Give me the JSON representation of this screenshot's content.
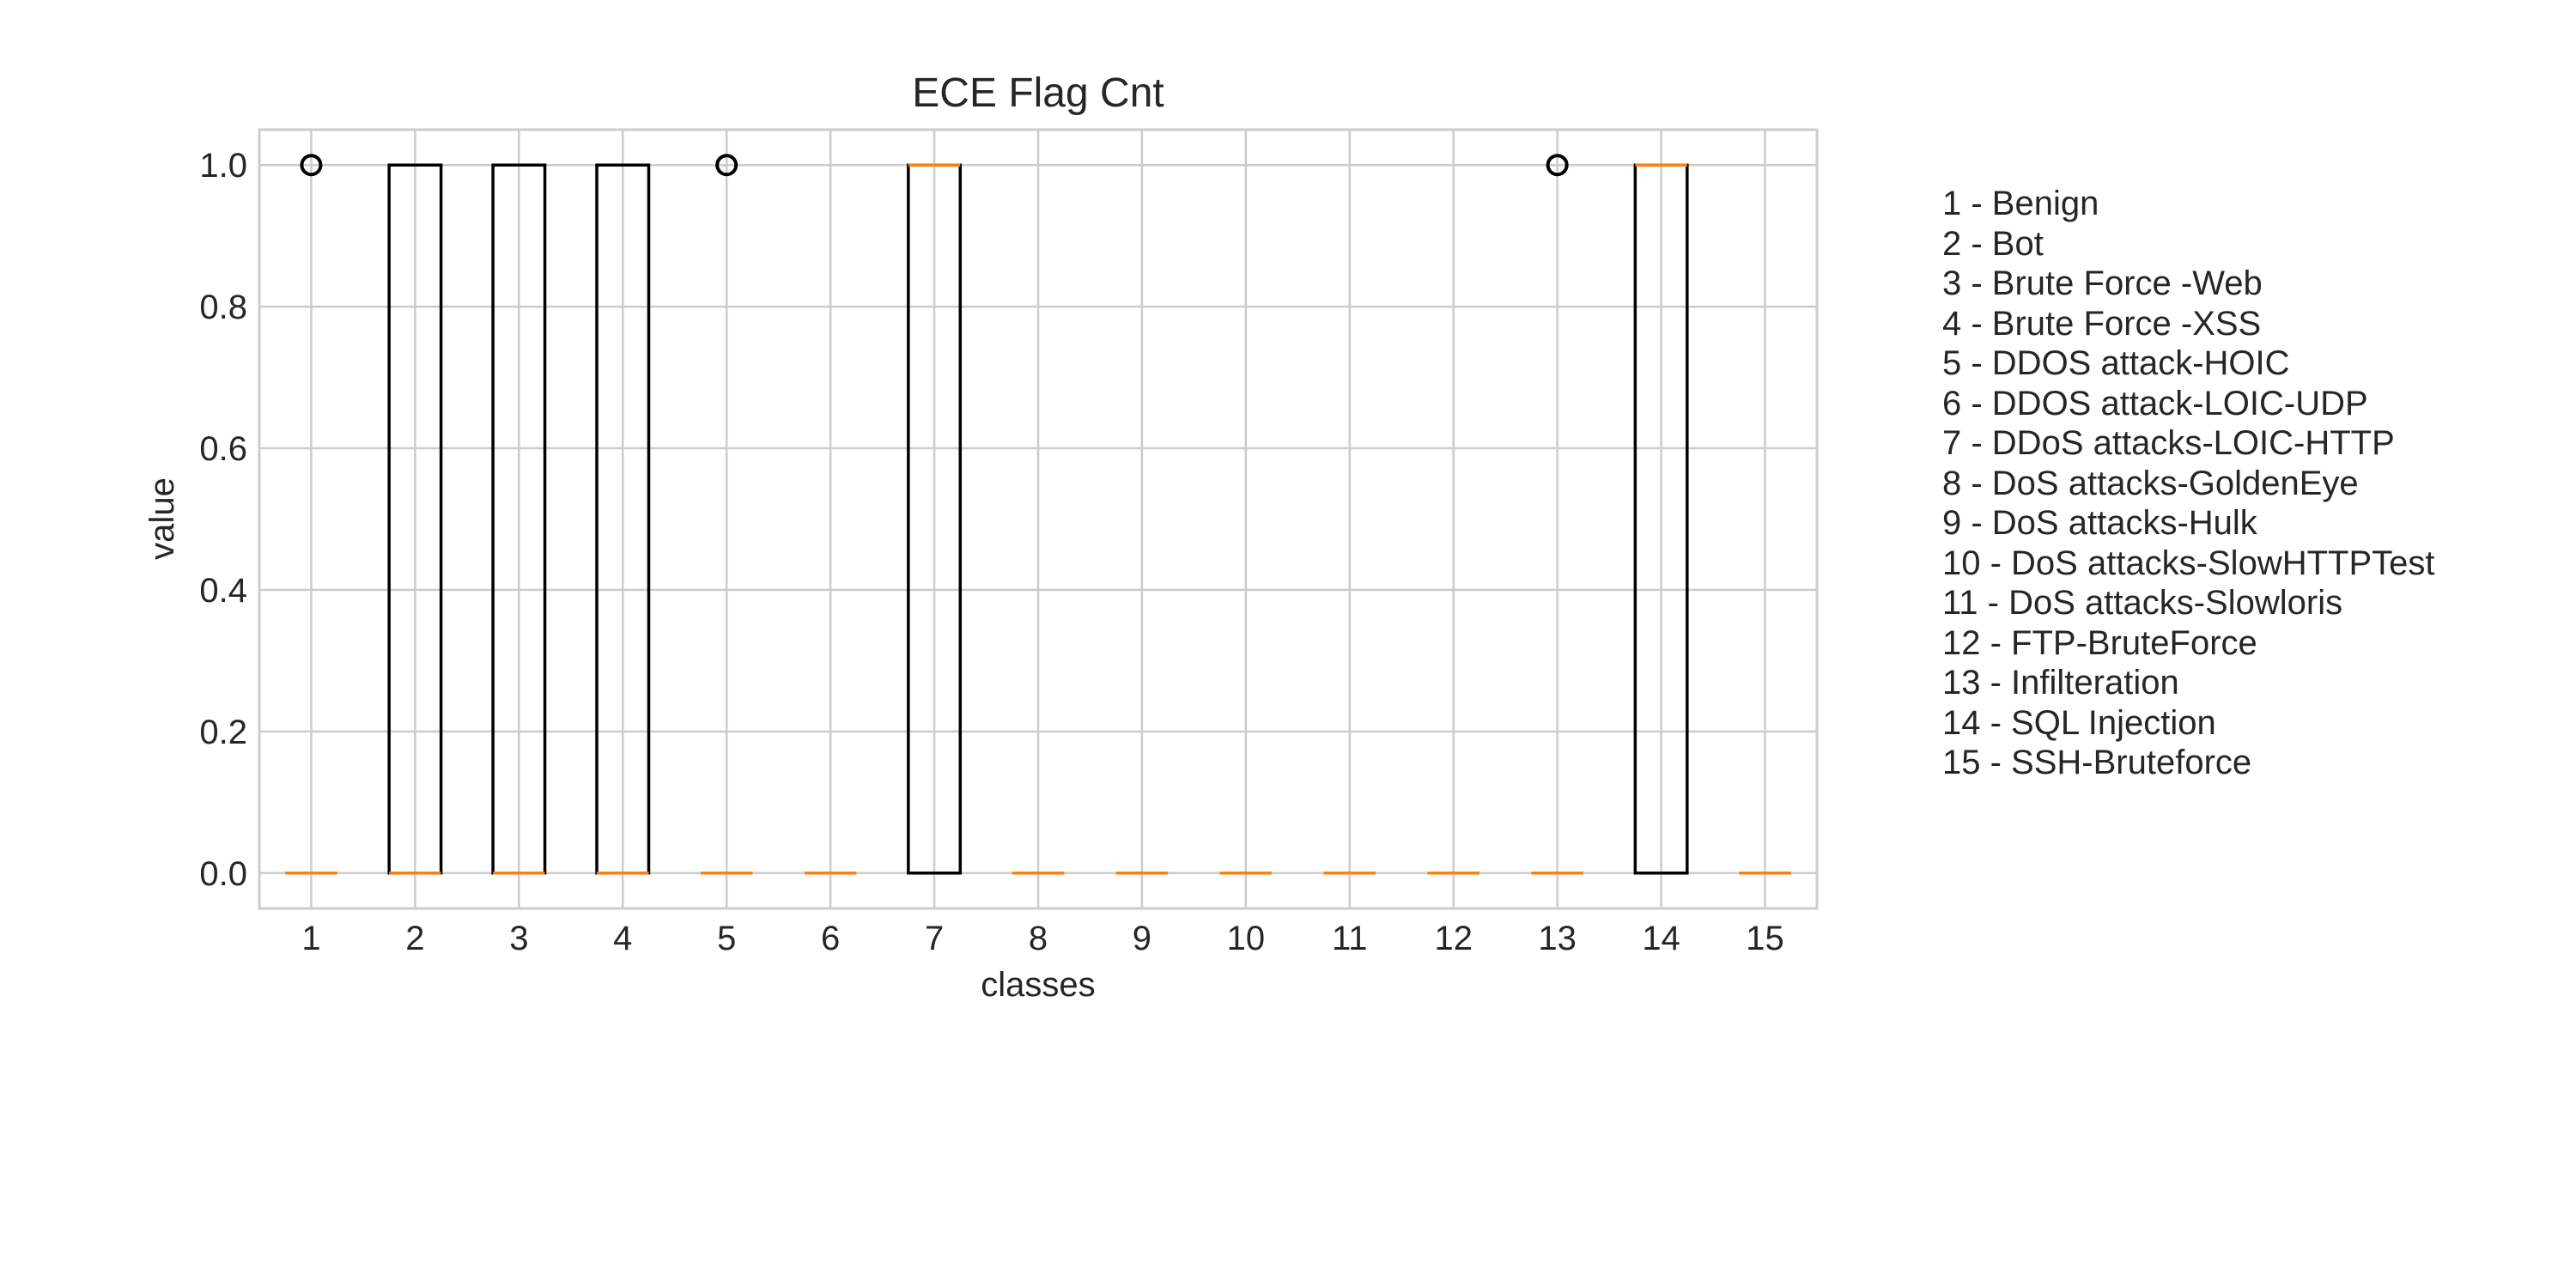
{
  "chart_data": {
    "type": "box",
    "title": "ECE Flag Cnt",
    "xlabel": "classes",
    "ylabel": "value",
    "ylim": [
      -0.05,
      1.05
    ],
    "yticks": [
      "0.0",
      "0.2",
      "0.4",
      "0.6",
      "0.8",
      "1.0"
    ],
    "grid": true,
    "categories": [
      "1",
      "2",
      "3",
      "4",
      "5",
      "6",
      "7",
      "8",
      "9",
      "10",
      "11",
      "12",
      "13",
      "14",
      "15"
    ],
    "boxes": [
      {
        "class": "1",
        "q1": 0,
        "median": 0,
        "q3": 0,
        "whisker_low": 0,
        "whisker_high": 0,
        "outliers": [
          1
        ]
      },
      {
        "class": "2",
        "q1": 0,
        "median": 0,
        "q3": 1,
        "whisker_low": 0,
        "whisker_high": 1,
        "outliers": []
      },
      {
        "class": "3",
        "q1": 0,
        "median": 0,
        "q3": 1,
        "whisker_low": 0,
        "whisker_high": 1,
        "outliers": []
      },
      {
        "class": "4",
        "q1": 0,
        "median": 0,
        "q3": 1,
        "whisker_low": 0,
        "whisker_high": 1,
        "outliers": []
      },
      {
        "class": "5",
        "q1": 0,
        "median": 0,
        "q3": 0,
        "whisker_low": 0,
        "whisker_high": 0,
        "outliers": [
          1
        ]
      },
      {
        "class": "6",
        "q1": 0,
        "median": 0,
        "q3": 0,
        "whisker_low": 0,
        "whisker_high": 0,
        "outliers": []
      },
      {
        "class": "7",
        "q1": 0,
        "median": 1,
        "q3": 1,
        "whisker_low": 0,
        "whisker_high": 1,
        "outliers": []
      },
      {
        "class": "8",
        "q1": 0,
        "median": 0,
        "q3": 0,
        "whisker_low": 0,
        "whisker_high": 0,
        "outliers": []
      },
      {
        "class": "9",
        "q1": 0,
        "median": 0,
        "q3": 0,
        "whisker_low": 0,
        "whisker_high": 0,
        "outliers": []
      },
      {
        "class": "10",
        "q1": 0,
        "median": 0,
        "q3": 0,
        "whisker_low": 0,
        "whisker_high": 0,
        "outliers": []
      },
      {
        "class": "11",
        "q1": 0,
        "median": 0,
        "q3": 0,
        "whisker_low": 0,
        "whisker_high": 0,
        "outliers": []
      },
      {
        "class": "12",
        "q1": 0,
        "median": 0,
        "q3": 0,
        "whisker_low": 0,
        "whisker_high": 0,
        "outliers": []
      },
      {
        "class": "13",
        "q1": 0,
        "median": 0,
        "q3": 0,
        "whisker_low": 0,
        "whisker_high": 0,
        "outliers": [
          1
        ]
      },
      {
        "class": "14",
        "q1": 0,
        "median": 1,
        "q3": 1,
        "whisker_low": 0,
        "whisker_high": 1,
        "outliers": []
      },
      {
        "class": "15",
        "q1": 0,
        "median": 0,
        "q3": 0,
        "whisker_low": 0,
        "whisker_high": 0,
        "outliers": []
      }
    ],
    "legend_placement": "right",
    "legend": [
      "1 - Benign",
      "2 - Bot",
      "3 - Brute Force -Web",
      "4 - Brute Force -XSS",
      "5 - DDOS attack-HOIC",
      "6 - DDOS attack-LOIC-UDP",
      "7 - DDoS attacks-LOIC-HTTP",
      "8 - DoS attacks-GoldenEye",
      "9 - DoS attacks-Hulk",
      "10 - DoS attacks-SlowHTTPTest",
      "11 - DoS attacks-Slowloris",
      "12 - FTP-BruteForce",
      "13 - Infilteration",
      "14 - SQL Injection",
      "15 - SSH-Bruteforce"
    ],
    "colors": {
      "box": "#000000",
      "median": "#ff7f0e",
      "grid": "#cccccc",
      "frame": "#cccccc"
    }
  }
}
